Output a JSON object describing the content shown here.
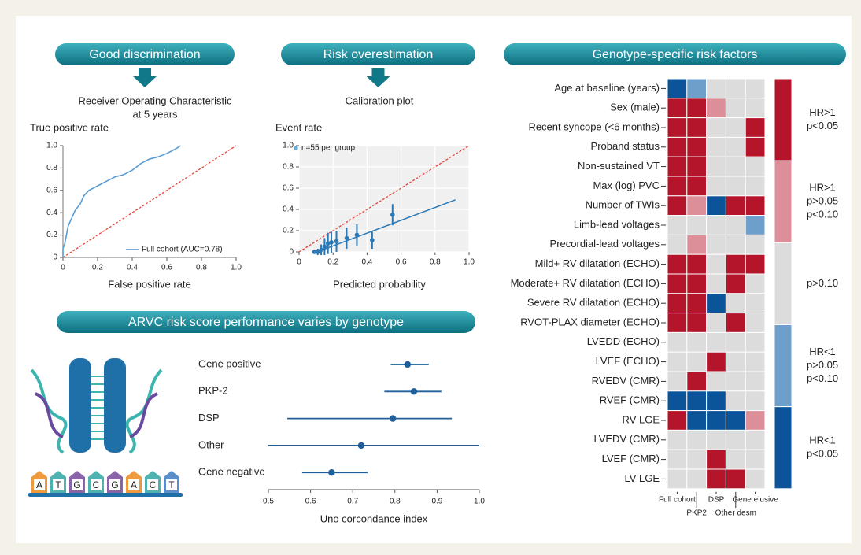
{
  "chart_data": [
    {
      "type": "line",
      "title": "Good discrimination",
      "subtitle": [
        "Receiver Operating Characteristic",
        "at 5 years"
      ],
      "ylabel": "True positive rate",
      "xlabel": "False positive rate",
      "xlim": [
        0,
        1
      ],
      "ylim": [
        0,
        1
      ],
      "xticks": [
        0,
        0.2,
        0.4,
        0.6,
        0.8,
        {
          "value": 1,
          "label": "1.0"
        }
      ],
      "yticks": [
        0,
        0.2,
        0.4,
        0.6,
        0.8,
        {
          "value": 1,
          "label": "1.0"
        }
      ],
      "grid": false,
      "legend": "lower right",
      "series": [
        {
          "name": "Full cohort (AUC=0.78)",
          "color": "#5b9bd0",
          "x": [
            0,
            0,
            0.01,
            0.02,
            0.03,
            0.05,
            0.07,
            0.1,
            0.12,
            0.15,
            0.2,
            0.25,
            0.3,
            0.35,
            0.4,
            0.45,
            0.5,
            0.55,
            0.6,
            0.65,
            0.68
          ],
          "values": [
            0,
            0.08,
            0.12,
            0.2,
            0.28,
            0.35,
            0.42,
            0.48,
            0.55,
            0.6,
            0.64,
            0.68,
            0.72,
            0.74,
            0.78,
            0.84,
            0.88,
            0.9,
            0.93,
            0.97,
            1.0
          ]
        }
      ],
      "reference_line": {
        "x": [
          0,
          1
        ],
        "values": [
          0,
          1
        ],
        "color": "#e8433a"
      }
    },
    {
      "type": "scatter",
      "title": "Risk overestimation",
      "subtitle": [
        "Calibration plot"
      ],
      "ylabel": "Event rate",
      "xlabel": "Predicted probability",
      "xlim": [
        0,
        1
      ],
      "ylim": [
        0,
        1
      ],
      "xticks": [
        0,
        0.2,
        0.4,
        0.6,
        0.8,
        {
          "value": 1,
          "label": "1.0"
        }
      ],
      "yticks": [
        0,
        0.2,
        0.4,
        0.6,
        0.8,
        {
          "value": 1,
          "label": "1.0"
        }
      ],
      "grid": true,
      "legend": "upper left",
      "series": [
        {
          "name": "n=55 per group",
          "color": "#2a78b5",
          "legend_color": "#6aaad6",
          "x": [
            0.09,
            0.11,
            0.13,
            0.15,
            0.17,
            0.19,
            0.22,
            0.28,
            0.34,
            0.43,
            0.55
          ],
          "values": [
            0.0,
            0.0,
            0.02,
            0.05,
            0.08,
            0.09,
            0.1,
            0.13,
            0.16,
            0.11,
            0.35
          ],
          "error": [
            0.02,
            0.03,
            0.05,
            0.08,
            0.1,
            0.1,
            0.1,
            0.1,
            0.1,
            0.08,
            0.1
          ]
        }
      ],
      "fit_line": {
        "x": [
          0.09,
          0.92
        ],
        "values": [
          -0.01,
          0.49
        ],
        "color": "#2a78b5"
      },
      "reference_line": {
        "x": [
          0,
          1
        ],
        "values": [
          0,
          1
        ],
        "color": "#e8433a"
      }
    },
    {
      "type": "forest",
      "title": "ARVC risk score performance varies by genotype",
      "xlabel": "Uno corcondance index",
      "color": "#1f5f9a",
      "categories": [
        "Gene positive",
        "PKP-2",
        "DSP",
        "Other",
        "Gene negative"
      ],
      "values": [
        0.83,
        0.845,
        0.795,
        0.72,
        0.65
      ],
      "lower": [
        0.79,
        0.775,
        0.545,
        0.5,
        0.58
      ],
      "upper": [
        0.88,
        0.91,
        0.935,
        1.0,
        0.735
      ],
      "xlim": [
        0.5,
        1
      ],
      "xticks": [
        0.5,
        0.6,
        0.7,
        0.8,
        0.9,
        {
          "value": 1,
          "label": "1.0"
        }
      ]
    },
    {
      "type": "heatmap",
      "title": "Genotype-specific risk factors",
      "rows": [
        "Age at baseline (years)",
        "Sex (male)",
        "Recent syncope (<6 months)",
        "Proband status",
        "Non-sustained VT",
        "Max (log) PVC",
        "Number of TWIs",
        "Limb-lead voltages",
        "Precordial-lead voltages",
        "Mild+ RV dilatation (ECHO)",
        "Moderate+ RV dilatation (ECHO)",
        "Severe RV dilatation (ECHO)",
        "RVOT-PLAX diameter (ECHO)",
        "LVEDD (ECHO)",
        "LVEF (ECHO)",
        "RVEDV (CMR)",
        "RVEF (CMR)",
        "RV LGE",
        "LVEDV (CMR)",
        "LVEF (CMR)",
        "LV LGE"
      ],
      "columns": [
        "Full cohort",
        "PKP2",
        "DSP",
        "Other desm",
        "Gene elusive"
      ],
      "values": [
        [
          4,
          3,
          2,
          2,
          2
        ],
        [
          0,
          0,
          1,
          2,
          2
        ],
        [
          0,
          0,
          2,
          2,
          0
        ],
        [
          0,
          0,
          2,
          2,
          0
        ],
        [
          0,
          0,
          2,
          2,
          2
        ],
        [
          0,
          0,
          2,
          2,
          2
        ],
        [
          0,
          1,
          4,
          0,
          0
        ],
        [
          2,
          2,
          2,
          2,
          3
        ],
        [
          2,
          1,
          2,
          2,
          2
        ],
        [
          0,
          0,
          2,
          0,
          0
        ],
        [
          0,
          0,
          2,
          0,
          2
        ],
        [
          0,
          0,
          4,
          2,
          2
        ],
        [
          0,
          0,
          2,
          0,
          2
        ],
        [
          2,
          2,
          2,
          2,
          2
        ],
        [
          2,
          2,
          0,
          2,
          2
        ],
        [
          2,
          0,
          2,
          2,
          2
        ],
        [
          4,
          4,
          4,
          2,
          2
        ],
        [
          0,
          4,
          4,
          4,
          1
        ],
        [
          2,
          2,
          2,
          2,
          2
        ],
        [
          2,
          2,
          0,
          2,
          2
        ],
        [
          2,
          2,
          0,
          0,
          2
        ]
      ],
      "legend": [
        {
          "lines": [
            "HR>1",
            "p<0.05"
          ],
          "color": "#b5152b"
        },
        {
          "lines": [
            "HR>1",
            "p>0.05",
            "p<0.10"
          ],
          "color": "#dc8f98"
        },
        {
          "lines": [
            "p>0.10"
          ],
          "color": "#dcdcdc"
        },
        {
          "lines": [
            "HR<1",
            "p>0.05",
            "p<0.10"
          ],
          "color": "#6d9fca"
        },
        {
          "lines": [
            "HR<1",
            "p<0.05"
          ],
          "color": "#0b5499"
        }
      ]
    }
  ],
  "illustration": {
    "bases": [
      "A",
      "T",
      "G",
      "C",
      "G",
      "A",
      "C",
      "T"
    ]
  }
}
